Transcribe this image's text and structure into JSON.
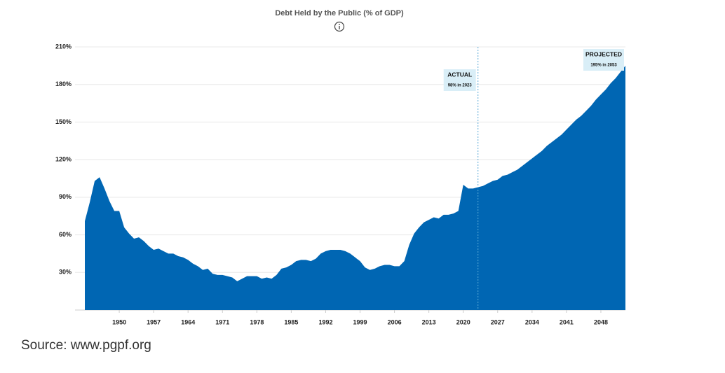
{
  "chart_data": {
    "type": "area",
    "title": "Debt Held by the Public (% of GDP)",
    "color": "#0066b3",
    "x": [
      1943,
      1944,
      1945,
      1946,
      1947,
      1948,
      1949,
      1950,
      1951,
      1952,
      1953,
      1954,
      1955,
      1956,
      1957,
      1958,
      1959,
      1960,
      1961,
      1962,
      1963,
      1964,
      1965,
      1966,
      1967,
      1968,
      1969,
      1970,
      1971,
      1972,
      1973,
      1974,
      1975,
      1976,
      1977,
      1978,
      1979,
      1980,
      1981,
      1982,
      1983,
      1984,
      1985,
      1986,
      1987,
      1988,
      1989,
      1990,
      1991,
      1992,
      1993,
      1994,
      1995,
      1996,
      1997,
      1998,
      1999,
      2000,
      2001,
      2002,
      2003,
      2004,
      2005,
      2006,
      2007,
      2008,
      2009,
      2010,
      2011,
      2012,
      2013,
      2014,
      2015,
      2016,
      2017,
      2018,
      2019,
      2020,
      2021,
      2022,
      2023,
      2024,
      2025,
      2026,
      2027,
      2028,
      2029,
      2030,
      2031,
      2032,
      2033,
      2034,
      2035,
      2036,
      2037,
      2038,
      2039,
      2040,
      2041,
      2042,
      2043,
      2044,
      2045,
      2046,
      2047,
      2048,
      2049,
      2050,
      2051,
      2052,
      2053
    ],
    "values": [
      71,
      86,
      103,
      106,
      97,
      87,
      79,
      79,
      66,
      61,
      57,
      58,
      55,
      51,
      48,
      49,
      47,
      45,
      45,
      43,
      42,
      40,
      37,
      35,
      32,
      33,
      29,
      28,
      28,
      27,
      26,
      23,
      25,
      27,
      27,
      27,
      25,
      26,
      25,
      28,
      33,
      34,
      36,
      39,
      40,
      40,
      39,
      41,
      45,
      47,
      48,
      48,
      48,
      47,
      45,
      42,
      39,
      34,
      32,
      33,
      35,
      36,
      36,
      35,
      35,
      39,
      52,
      61,
      66,
      70,
      72,
      74,
      73,
      76,
      76,
      77,
      79,
      100,
      97,
      97,
      98,
      99,
      101,
      103,
      104,
      107,
      108,
      110,
      112,
      115,
      118,
      121,
      124,
      127,
      131,
      134,
      137,
      140,
      144,
      148,
      152,
      155,
      159,
      163,
      168,
      172,
      176,
      181,
      185,
      190,
      195
    ],
    "xlim": [
      1941,
      2053
    ],
    "xticks": [
      1950,
      1957,
      1964,
      1971,
      1978,
      1985,
      1992,
      1999,
      2006,
      2013,
      2020,
      2027,
      2034,
      2041,
      2048
    ],
    "ylim": [
      0,
      210
    ],
    "yticks": [
      {
        "value": 30,
        "label": "30%"
      },
      {
        "value": 60,
        "label": "60%"
      },
      {
        "value": 90,
        "label": "90%"
      },
      {
        "value": 120,
        "label": "120%"
      },
      {
        "value": 150,
        "label": "150%"
      },
      {
        "value": 180,
        "label": "180%"
      },
      {
        "value": 210,
        "label": "210%"
      }
    ],
    "grid": true,
    "annotations": [
      {
        "x": 2023,
        "title": "ACTUAL",
        "text": "98% in 2023"
      },
      {
        "x": 2053,
        "title": "PROJECTED",
        "text": "195% in 2053"
      }
    ],
    "source": "Source: www.pgpf.org"
  }
}
